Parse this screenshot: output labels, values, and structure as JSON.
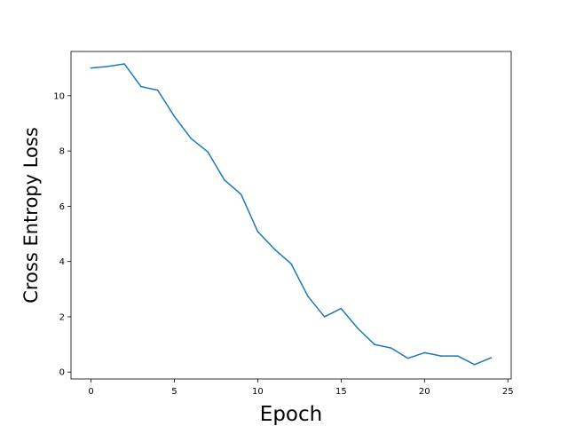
{
  "chart_data": {
    "type": "line",
    "title": "",
    "xlabel": "Epoch",
    "ylabel": "Cross Entropy Loss",
    "xlim": [
      -1.2,
      25.2
    ],
    "ylim": [
      -0.25,
      11.6
    ],
    "x_ticks": [
      0,
      5,
      10,
      15,
      20,
      25
    ],
    "y_ticks": [
      0,
      2,
      4,
      6,
      8,
      10
    ],
    "grid": false,
    "legend": "none",
    "series": [
      {
        "color": "#1f77b4",
        "x": [
          0,
          1,
          2,
          3,
          4,
          5,
          6,
          7,
          8,
          9,
          10,
          11,
          12,
          13,
          14,
          15,
          16,
          17,
          18,
          19,
          20,
          21,
          22,
          23,
          24
        ],
        "y": [
          11.0,
          11.06,
          11.15,
          10.33,
          10.2,
          9.25,
          8.45,
          7.97,
          6.95,
          6.43,
          5.08,
          4.45,
          3.92,
          2.75,
          2.0,
          2.3,
          1.58,
          1.0,
          0.87,
          0.5,
          0.7,
          0.58,
          0.58,
          0.27,
          0.52
        ]
      }
    ]
  }
}
